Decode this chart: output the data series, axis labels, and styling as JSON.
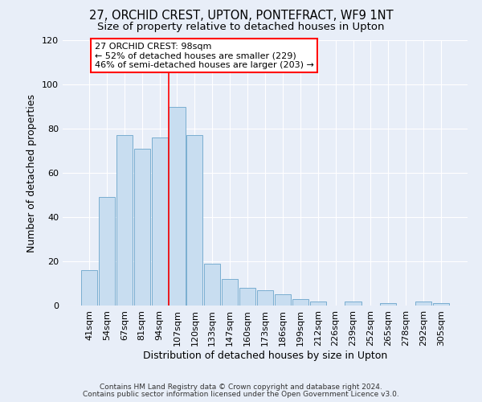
{
  "title": "27, ORCHID CREST, UPTON, PONTEFRACT, WF9 1NT",
  "subtitle": "Size of property relative to detached houses in Upton",
  "xlabel": "Distribution of detached houses by size in Upton",
  "ylabel": "Number of detached properties",
  "categories": [
    "41sqm",
    "54sqm",
    "67sqm",
    "81sqm",
    "94sqm",
    "107sqm",
    "120sqm",
    "133sqm",
    "147sqm",
    "160sqm",
    "173sqm",
    "186sqm",
    "199sqm",
    "212sqm",
    "226sqm",
    "239sqm",
    "252sqm",
    "265sqm",
    "278sqm",
    "292sqm",
    "305sqm"
  ],
  "values": [
    16,
    49,
    77,
    71,
    76,
    90,
    77,
    19,
    12,
    8,
    7,
    5,
    3,
    2,
    0,
    2,
    0,
    1,
    0,
    2,
    1
  ],
  "bar_color": "#c8ddf0",
  "bar_edge_color": "#7aaed0",
  "reference_line_x": 4.5,
  "reference_line_color": "red",
  "annotation_box_text_line1": "27 ORCHID CREST: 98sqm",
  "annotation_box_text_line2": "← 52% of detached houses are smaller (229)",
  "annotation_box_text_line3": "46% of semi-detached houses are larger (203) →",
  "ylim": [
    0,
    120
  ],
  "yticks": [
    0,
    20,
    40,
    60,
    80,
    100,
    120
  ],
  "footer_line1": "Contains HM Land Registry data © Crown copyright and database right 2024.",
  "footer_line2": "Contains public sector information licensed under the Open Government Licence v3.0.",
  "bg_color": "#e8eef8",
  "plot_bg_color": "#e8eef8",
  "title_fontsize": 10.5,
  "subtitle_fontsize": 9.5,
  "axis_label_fontsize": 9,
  "tick_fontsize": 8,
  "annotation_fontsize": 8,
  "footer_fontsize": 6.5,
  "grid_color": "#ffffff"
}
